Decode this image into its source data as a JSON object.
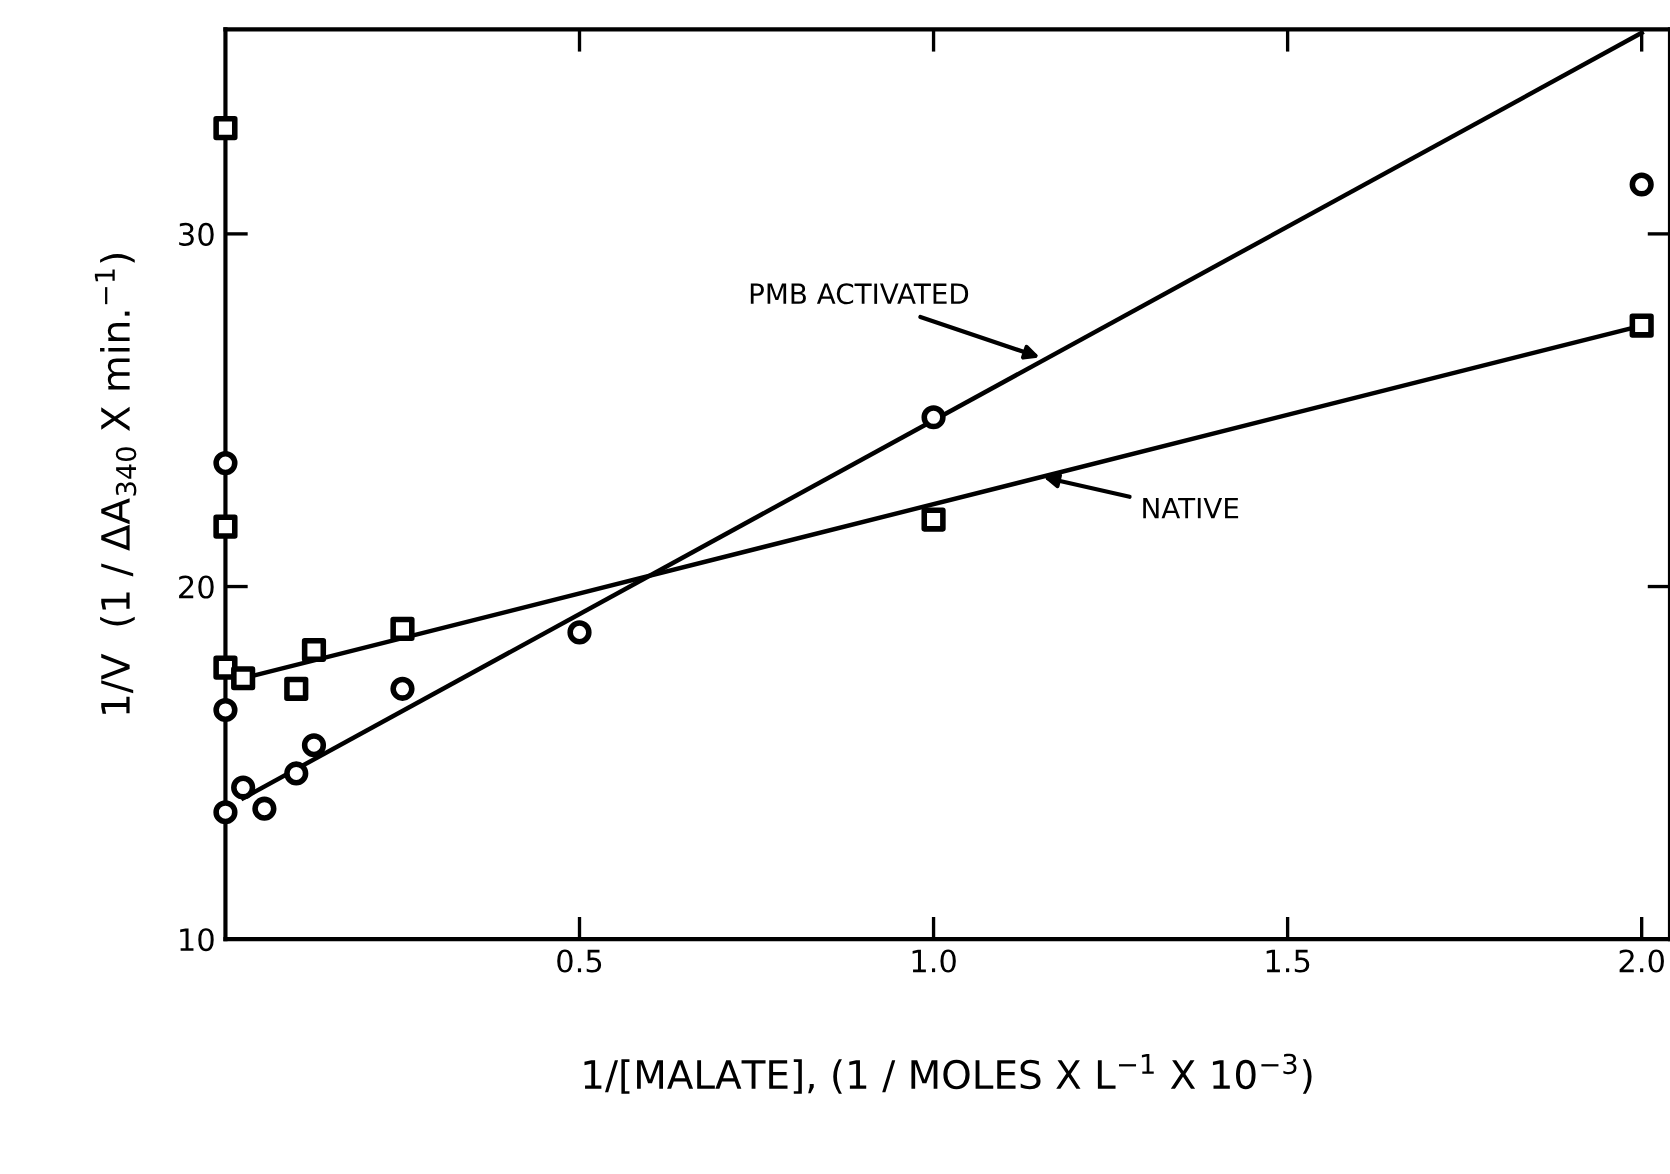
{
  "chart_data": {
    "type": "scatter",
    "xlabel": "1/[MALATE], (1 / MOLES X L$^{−1}$ X 10$^{−3}$)",
    "ylabel": "1/V  (1 / ΔA$_{340}$ X min.$^{−1}$)",
    "xlim": [
      0,
      2.04
    ],
    "ylim": [
      10,
      35.8
    ],
    "xticks": [
      {
        "value": 0.5,
        "label": "0.5"
      },
      {
        "value": 1.0,
        "label": "1.0"
      },
      {
        "value": 1.5,
        "label": "1.5"
      },
      {
        "value": 2.0,
        "label": "2.0"
      }
    ],
    "yticks": [
      10,
      20,
      30
    ],
    "grid": false,
    "legend": false,
    "series": [
      {
        "marker": "square",
        "color": "#000000",
        "x": [
          0,
          0,
          0,
          0.025,
          0.1,
          0.125,
          0.25,
          1.0,
          2.0
        ],
        "values": [
          33.0,
          21.7,
          17.7,
          17.4,
          17.1,
          18.2,
          18.8,
          21.9,
          27.4
        ]
      },
      {
        "marker": "circle",
        "color": "#000000",
        "x": [
          0,
          0,
          0,
          0.025,
          0.055,
          0.1,
          0.125,
          0.25,
          0.5,
          1.0,
          2.0
        ],
        "values": [
          23.5,
          16.5,
          13.6,
          14.3,
          13.7,
          14.7,
          15.5,
          17.1,
          18.7,
          24.8,
          31.4
        ]
      },
      {
        "type": "line",
        "color": "#000000",
        "x": [
          0.025,
          2.0
        ],
        "values": [
          17.4,
          27.4
        ]
      },
      {
        "type": "line",
        "color": "#000000",
        "x": [
          0.025,
          2.0
        ],
        "values": [
          14.0,
          35.7
        ]
      }
    ],
    "annotations": [
      {
        "text": "PMB ACTIVATED",
        "x": 1.15,
        "y": 26.5
      },
      {
        "text": "NATIVE",
        "x": 1.155,
        "y": 23.1
      }
    ]
  }
}
